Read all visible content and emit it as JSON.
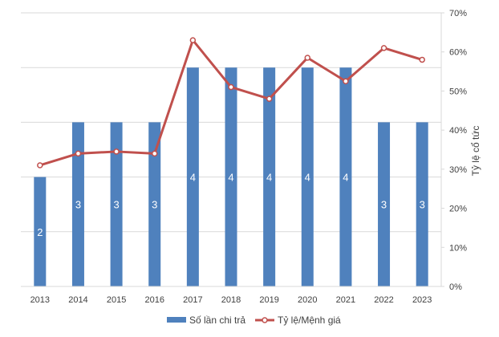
{
  "chart_data": {
    "type": "bar",
    "categories": [
      "2013",
      "2014",
      "2015",
      "2016",
      "2017",
      "2018",
      "2019",
      "2020",
      "2021",
      "2022",
      "2023"
    ],
    "series": [
      {
        "name": "Số lần chi trả",
        "type": "bar",
        "axis": "left",
        "values": [
          2,
          3,
          3,
          3,
          4,
          4,
          4,
          4,
          4,
          3,
          3
        ],
        "color": "#4F81BD"
      },
      {
        "name": "Tỷ lệ/Mệnh giá",
        "type": "line",
        "axis": "right",
        "values": [
          0.31,
          0.34,
          0.345,
          0.34,
          0.63,
          0.51,
          0.48,
          0.585,
          0.525,
          0.61,
          0.58
        ],
        "color": "#C0504D",
        "marker": "circle"
      }
    ],
    "y_left": {
      "range": [
        0,
        5
      ],
      "tick_labels_visible": false,
      "gridlines": [
        1,
        2,
        3,
        4
      ]
    },
    "y_right": {
      "label": "Tỷ lệ cổ tức",
      "range": [
        0,
        0.7
      ],
      "ticks": [
        0,
        0.1,
        0.2,
        0.3,
        0.4,
        0.5,
        0.6,
        0.7
      ],
      "tick_labels": [
        "0%",
        "10%",
        "20%",
        "30%",
        "40%",
        "50%",
        "60%",
        "70%"
      ]
    },
    "data_labels": [
      "2",
      "3",
      "3",
      "3",
      "4",
      "4",
      "4",
      "4",
      "4",
      "3",
      "3"
    ],
    "legend": {
      "position": "bottom",
      "entries": [
        "Số lần chi trả",
        "Tỷ lệ/Mệnh giá"
      ]
    },
    "grid": true,
    "title": ""
  }
}
